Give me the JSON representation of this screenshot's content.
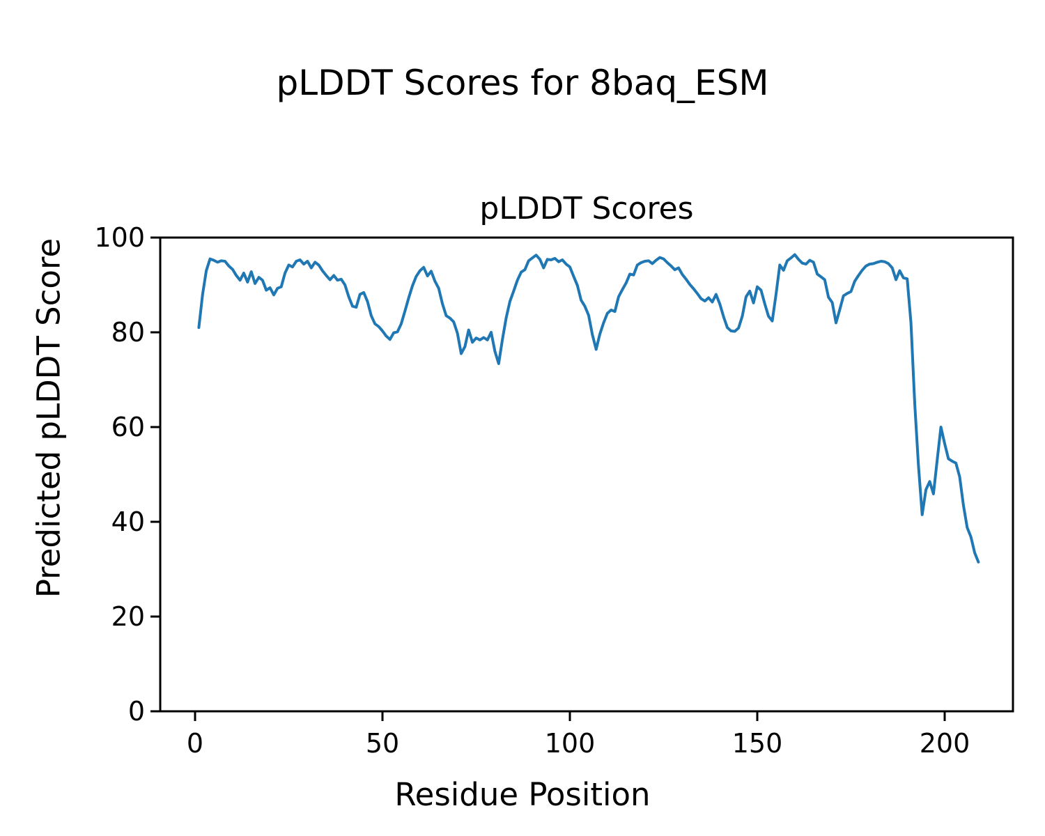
{
  "chart_data": {
    "type": "line",
    "title": "pLDDT Scores for 8baq_ESM",
    "axes_title": "pLDDT Scores",
    "xlabel": "Residue Position",
    "ylabel": "Predicted pLDDT Score",
    "x_ticks": [
      0,
      50,
      100,
      150,
      200
    ],
    "y_ticks": [
      0,
      20,
      40,
      60,
      80,
      100
    ],
    "ylim": [
      0,
      100
    ],
    "x_start": 1,
    "x_end": 209,
    "legend": "none",
    "grid": false,
    "line_color": "#1f77b4",
    "axis_color": "#000000",
    "background": "#ffffff",
    "values": [
      81.0,
      88.0,
      93.0,
      95.5,
      95.2,
      94.8,
      95.1,
      95.0,
      94.0,
      93.3,
      92.0,
      91.0,
      92.5,
      90.6,
      92.8,
      90.3,
      91.6,
      91.0,
      88.9,
      89.4,
      87.9,
      89.3,
      89.6,
      92.5,
      94.2,
      93.8,
      95.0,
      95.3,
      94.4,
      95.0,
      93.6,
      94.8,
      94.2,
      93.0,
      92.0,
      91.1,
      92.0,
      91.0,
      91.2,
      90.0,
      87.5,
      85.5,
      85.3,
      88.0,
      88.4,
      86.5,
      83.5,
      81.8,
      81.2,
      80.3,
      79.2,
      78.5,
      79.9,
      80.1,
      81.8,
      84.5,
      87.3,
      89.8,
      91.8,
      93.0,
      93.7,
      91.9,
      92.9,
      90.8,
      89.3,
      86.0,
      83.5,
      83.0,
      82.2,
      79.8,
      75.5,
      77.0,
      80.5,
      77.9,
      78.8,
      78.4,
      78.9,
      78.4,
      80.0,
      76.0,
      73.4,
      78.5,
      83.0,
      86.5,
      88.7,
      91.0,
      92.7,
      93.2,
      95.1,
      95.7,
      96.3,
      95.4,
      93.6,
      95.4,
      95.3,
      95.6,
      94.9,
      95.3,
      94.4,
      93.8,
      91.8,
      89.9,
      86.8,
      85.5,
      83.6,
      79.5,
      76.4,
      79.6,
      82.0,
      84.0,
      84.7,
      84.4,
      87.5,
      89.0,
      90.4,
      92.3,
      92.1,
      94.2,
      94.7,
      95.0,
      95.1,
      94.5,
      95.2,
      95.8,
      95.5,
      94.7,
      94.0,
      93.2,
      93.6,
      92.2,
      91.2,
      90.1,
      89.2,
      88.2,
      87.1,
      86.6,
      87.3,
      86.4,
      88.0,
      86.0,
      83.3,
      81.0,
      80.3,
      80.2,
      80.9,
      83.4,
      87.5,
      88.7,
      86.2,
      89.6,
      88.9,
      86.0,
      83.4,
      82.4,
      88.0,
      94.2,
      93.1,
      95.1,
      95.7,
      96.4,
      95.4,
      94.6,
      94.4,
      95.2,
      94.8,
      92.3,
      91.7,
      91.1,
      87.4,
      86.3,
      82.0,
      84.8,
      87.7,
      88.2,
      88.6,
      90.8,
      92.0,
      93.1,
      94.0,
      94.4,
      94.5,
      94.8,
      95.0,
      94.9,
      94.5,
      93.6,
      91.1,
      93.0,
      91.5,
      91.3,
      82.0,
      65.0,
      52.0,
      41.5,
      46.8,
      48.5,
      45.9,
      53.0,
      60.0,
      56.5,
      53.3,
      52.8,
      52.4,
      49.5,
      43.5,
      38.8,
      36.8,
      33.5,
      31.5
    ]
  }
}
